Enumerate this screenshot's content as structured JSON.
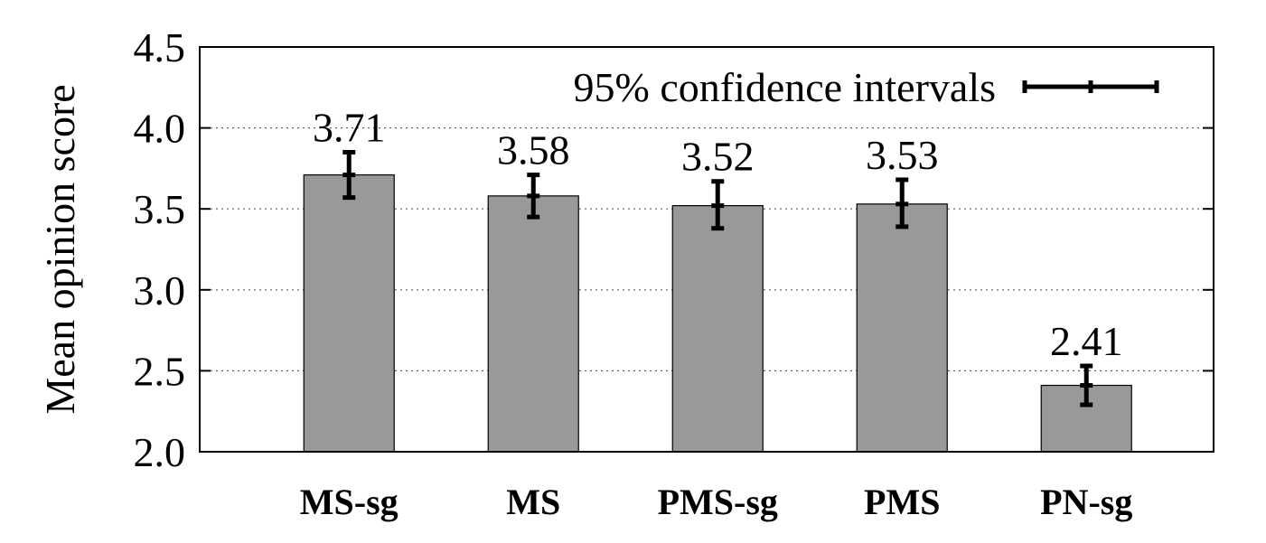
{
  "chart_data": {
    "type": "bar",
    "categories": [
      "MS-sg",
      "MS",
      "PMS-sg",
      "PMS",
      "PN-sg"
    ],
    "values": [
      3.71,
      3.58,
      3.52,
      3.53,
      2.41
    ],
    "value_labels": [
      "3.71",
      "3.58",
      "3.52",
      "3.53",
      "2.41"
    ],
    "error_low": [
      3.57,
      3.45,
      3.38,
      3.39,
      2.29
    ],
    "error_high": [
      3.85,
      3.71,
      3.67,
      3.68,
      2.53
    ],
    "ylabel": "Mean opinion score",
    "ylim": [
      2.0,
      4.5
    ],
    "yticks": [
      "2.0",
      "2.5",
      "3.0",
      "3.5",
      "4.0",
      "4.5"
    ],
    "grid": "horizontal dotted",
    "legend": {
      "label": "95% confidence intervals",
      "position": "top-right"
    },
    "colors": {
      "bar": "#999999",
      "bar_edge": "#000000",
      "errorbar": "#000000"
    }
  }
}
